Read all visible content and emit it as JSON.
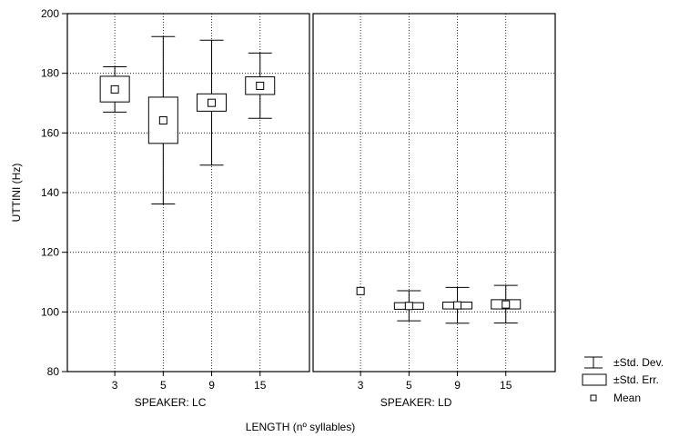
{
  "chart_data": {
    "type": "box",
    "ylabel": "UTTINI (Hz)",
    "xlabel": "LENGTH (nº syllables)",
    "ylim": [
      80,
      200
    ],
    "yticks": [
      80,
      100,
      120,
      140,
      160,
      180,
      200
    ],
    "grid": true,
    "legend_position": "right",
    "legend": [
      {
        "symbol": "whisker",
        "label": "±Std. Dev."
      },
      {
        "symbol": "box",
        "label": "±Std. Err."
      },
      {
        "symbol": "mean",
        "label": "Mean"
      }
    ],
    "panels": [
      {
        "title": "SPEAKER: LC",
        "categories": [
          "3",
          "5",
          "9",
          "15"
        ],
        "mean": [
          174.6,
          164.2,
          170.1,
          175.8
        ],
        "se_low": [
          170.4,
          156.5,
          167.3,
          172.9
        ],
        "se_high": [
          179.0,
          172.0,
          173.1,
          178.8
        ],
        "sd_low": [
          167.0,
          136.2,
          149.2,
          164.9
        ],
        "sd_high": [
          182.2,
          192.3,
          191.1,
          186.8
        ]
      },
      {
        "title": "SPEAKER: LD",
        "categories": [
          "3",
          "5",
          "9",
          "15"
        ],
        "mean": [
          107.0,
          102.0,
          102.2,
          102.5
        ],
        "se_low": [
          107.0,
          100.9,
          101.0,
          101.0
        ],
        "se_high": [
          107.0,
          103.1,
          103.3,
          104.1
        ],
        "sd_low": [
          107.0,
          97.0,
          96.2,
          96.3
        ],
        "sd_high": [
          107.0,
          107.1,
          108.2,
          108.9
        ]
      }
    ]
  }
}
